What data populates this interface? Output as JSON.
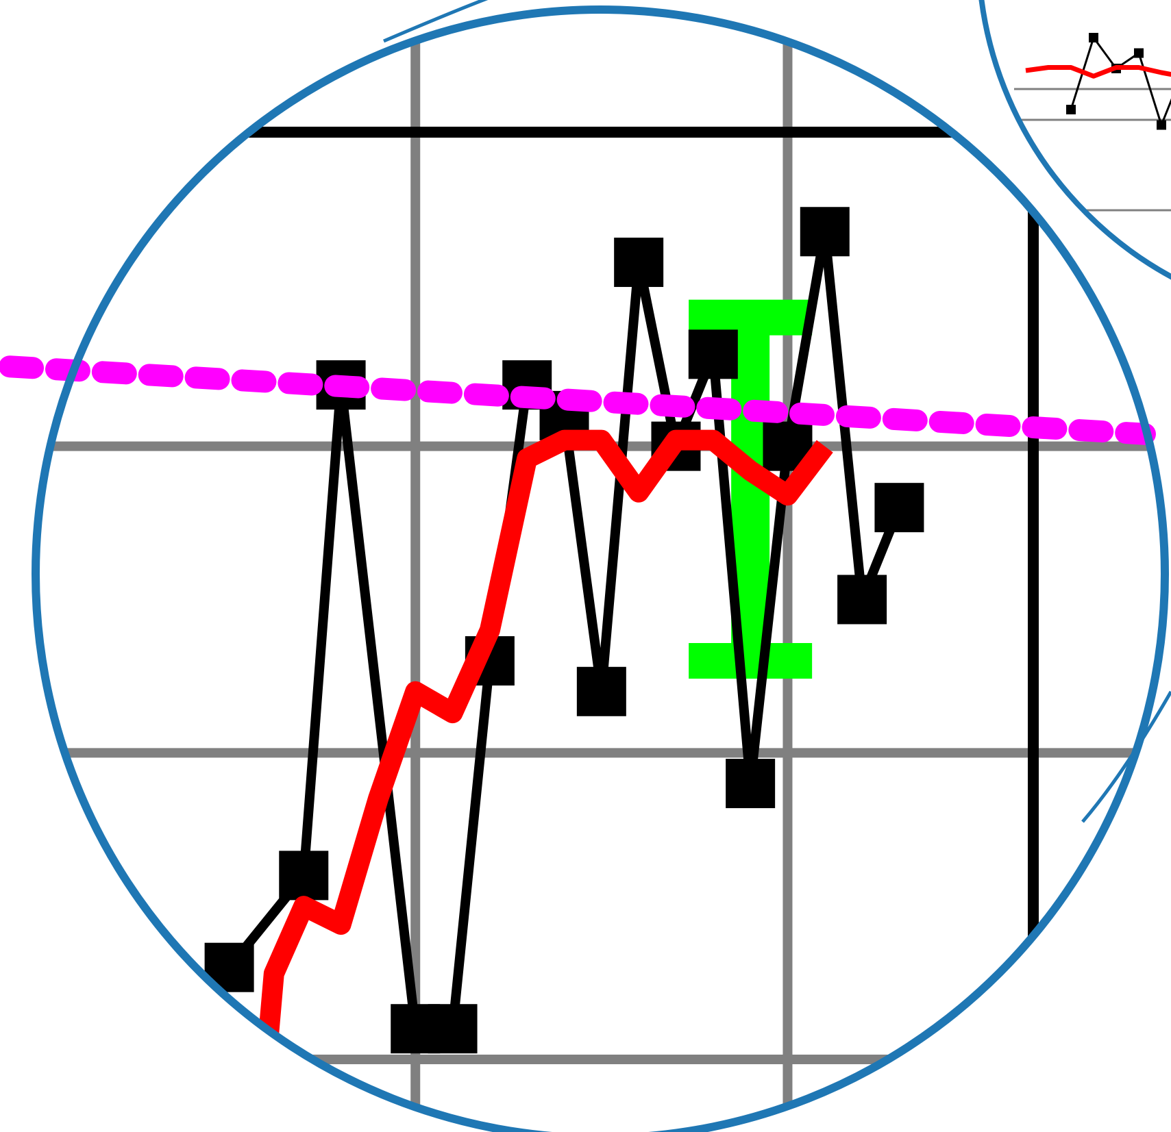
{
  "colors": {
    "background": "#ffffff",
    "grid": "#808080",
    "frame": "#000000",
    "series_markers": "#000000",
    "moving_average": "#ff0000",
    "trend": "#ff00ff",
    "error_bar": "#00ff00",
    "lens_border": "#1f77b4"
  },
  "chart_data": {
    "type": "line",
    "title": "",
    "xlabel": "",
    "ylabel": "",
    "grid": true,
    "legend": "none",
    "view": "magnified",
    "x_grid": [
      3,
      4
    ],
    "y_grid": [
      2,
      3,
      4
    ],
    "xlim": [
      2.0,
      4.66
    ],
    "ylim": [
      2.0,
      5.02
    ],
    "series": [
      {
        "kind": "markers-line",
        "color": "#000000",
        "x": [
          2.5,
          2.7,
          2.8,
          3.0,
          3.1,
          3.2,
          3.3,
          3.4,
          3.5,
          3.6,
          3.7,
          3.8,
          3.9,
          4.0,
          4.1,
          4.2,
          4.3
        ],
        "y": [
          2.3,
          2.6,
          4.2,
          2.1,
          2.1,
          3.3,
          4.2,
          4.1,
          3.2,
          4.6,
          4.0,
          4.3,
          2.9,
          4.0,
          4.7,
          3.5,
          3.8
        ]
      },
      {
        "kind": "line",
        "color": "#ff0000",
        "x": [
          2.6,
          2.62,
          2.7,
          2.8,
          2.9,
          3.0,
          3.1,
          3.2,
          3.3,
          3.4,
          3.5,
          3.6,
          3.7,
          3.8,
          3.9,
          4.0,
          4.1
        ],
        "y": [
          2.0,
          2.28,
          2.5,
          2.44,
          2.85,
          3.2,
          3.13,
          3.4,
          3.96,
          4.02,
          4.02,
          3.85,
          4.02,
          4.02,
          3.92,
          3.84,
          4.0
        ]
      },
      {
        "kind": "trend",
        "color": "#ff00ff",
        "x": [
          1.91,
          4.96
        ],
        "y": [
          4.26,
          4.04
        ]
      }
    ],
    "error_bars": [
      {
        "x": 3.9,
        "y": 3.86,
        "low": 3.3,
        "high": 4.42
      }
    ]
  }
}
